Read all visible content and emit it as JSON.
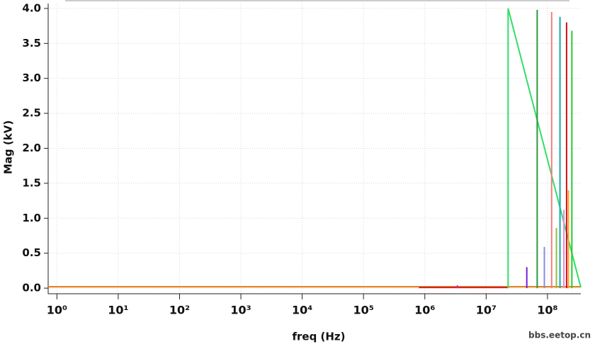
{
  "chart_data": {
    "type": "line",
    "x_label": "freq (Hz)",
    "y_label": "Mag (kV)",
    "watermark": "bbs.eetop.cn",
    "xscale": "log",
    "grid": true,
    "xlim": [
      0.72,
      350000000
    ],
    "ylim": [
      -0.08,
      4.07
    ],
    "xticks": [
      {
        "value": 1,
        "label": "10⁰"
      },
      {
        "value": 10,
        "label": "10¹"
      },
      {
        "value": 100,
        "label": "10²"
      },
      {
        "value": 1000,
        "label": "10³"
      },
      {
        "value": 10000,
        "label": "10⁴"
      },
      {
        "value": 100000,
        "label": "10⁵"
      },
      {
        "value": 1000000,
        "label": "10⁶"
      },
      {
        "value": 10000000,
        "label": "10⁷"
      },
      {
        "value": 100000000,
        "label": "10⁸"
      }
    ],
    "yticks": [
      {
        "value": 0,
        "label": "0.0"
      },
      0.5,
      {
        "value": 1,
        "label": "1.0"
      },
      1.5,
      {
        "value": 2,
        "label": "2.0"
      },
      2.5,
      {
        "value": 3,
        "label": "3.0"
      },
      3.5,
      {
        "value": 4,
        "label": "4.0"
      }
    ],
    "series": [
      {
        "color": "#e07a10",
        "x": [
          0.72,
          350000000
        ],
        "values": [
          0.02,
          0.02
        ]
      },
      {
        "color": "#d02020",
        "x": [
          800000,
          23000000
        ],
        "values": [
          0.01,
          0.01
        ]
      },
      {
        "color": "#d020c0",
        "x": [
          3400000,
          3400000
        ],
        "values": [
          0,
          0.04
        ]
      },
      {
        "color": "#33dd66",
        "x": [
          22800000,
          22800000,
          350000000
        ],
        "values": [
          0,
          4.0,
          0.01
        ]
      },
      {
        "color": "#7a1fd6",
        "x": [
          46000000,
          46000000
        ],
        "values": [
          0,
          0.3
        ]
      },
      {
        "color": "#2a9a3a",
        "x": [
          68000000,
          68000000
        ],
        "values": [
          0,
          3.98
        ]
      },
      {
        "color": "#8a8ae0",
        "x": [
          89000000,
          89000000
        ],
        "values": [
          0,
          0.59
        ]
      },
      {
        "color": "#f08080",
        "x": [
          117000000,
          117000000
        ],
        "values": [
          0,
          3.95
        ]
      },
      {
        "color": "#8cc040",
        "x": [
          140000000,
          140000000
        ],
        "values": [
          0,
          0.86
        ]
      },
      {
        "color": "#1aa6a6",
        "x": [
          160000000,
          160000000
        ],
        "values": [
          0,
          3.88
        ]
      },
      {
        "color": "#e88ae8",
        "x": [
          185000000,
          185000000
        ],
        "values": [
          0,
          1.12
        ]
      },
      {
        "color": "#d01010",
        "x": [
          205000000,
          205000000
        ],
        "values": [
          0,
          3.8
        ]
      },
      {
        "color": "#f0a030",
        "x": [
          220000000,
          220000000
        ],
        "values": [
          0,
          1.4
        ]
      },
      {
        "color": "#22cc33",
        "x": [
          250000000,
          250000000
        ],
        "values": [
          0,
          3.68
        ]
      }
    ]
  }
}
